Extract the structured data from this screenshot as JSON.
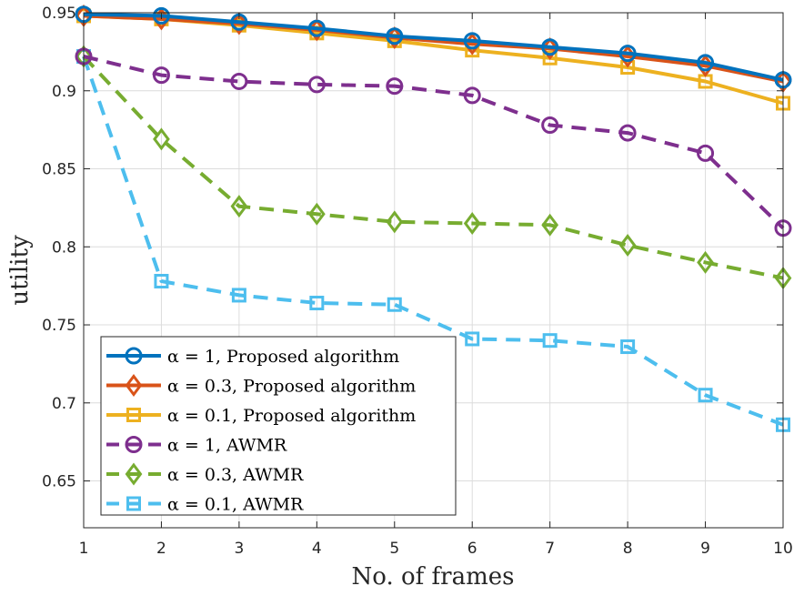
{
  "chart_data": {
    "type": "line",
    "title": "",
    "xlabel": "No. of frames",
    "ylabel": "utility",
    "xlim": [
      1,
      10
    ],
    "ylim": [
      0.62,
      0.95
    ],
    "x_ticks": [
      1,
      2,
      3,
      4,
      5,
      6,
      7,
      8,
      9,
      10
    ],
    "y_ticks": [
      0.65,
      0.7,
      0.75,
      0.8,
      0.85,
      0.9,
      0.95
    ],
    "y_tick_labels": [
      "0.65",
      "0.7",
      "0.75",
      "0.8",
      "0.85",
      "0.9",
      "0.95"
    ],
    "grid": true,
    "legend_position": "bottom-left",
    "x": [
      1,
      2,
      3,
      4,
      5,
      6,
      7,
      8,
      9,
      10
    ],
    "series": [
      {
        "name": "α = 1, Proposed algorithm",
        "values": [
          0.949,
          0.948,
          0.944,
          0.94,
          0.935,
          0.932,
          0.928,
          0.924,
          0.918,
          0.907
        ],
        "color": "#0072BD",
        "marker": "circle",
        "dash": "solid"
      },
      {
        "name": "α = 0.3, Proposed algorithm",
        "values": [
          0.948,
          0.946,
          0.943,
          0.939,
          0.934,
          0.93,
          0.927,
          0.922,
          0.916,
          0.906
        ],
        "color": "#D95319",
        "marker": "diamond",
        "dash": "solid"
      },
      {
        "name": "α = 0.1, Proposed algorithm",
        "values": [
          0.948,
          0.946,
          0.942,
          0.937,
          0.932,
          0.926,
          0.921,
          0.915,
          0.906,
          0.892
        ],
        "color": "#EDB120",
        "marker": "square",
        "dash": "solid"
      },
      {
        "name": "α = 1, AWMR",
        "values": [
          0.922,
          0.91,
          0.906,
          0.904,
          0.903,
          0.897,
          0.878,
          0.873,
          0.86,
          0.812
        ],
        "color": "#7E2F8E",
        "marker": "circle",
        "dash": "dashed"
      },
      {
        "name": "α = 0.3, AWMR",
        "values": [
          0.922,
          0.869,
          0.826,
          0.821,
          0.816,
          0.815,
          0.814,
          0.801,
          0.79,
          0.78
        ],
        "color": "#77AC30",
        "marker": "diamond",
        "dash": "dashed"
      },
      {
        "name": "α = 0.1, AWMR",
        "values": [
          0.922,
          0.778,
          0.769,
          0.764,
          0.763,
          0.741,
          0.74,
          0.736,
          0.705,
          0.686
        ],
        "color": "#4DBEEE",
        "marker": "square",
        "dash": "dashed"
      }
    ]
  }
}
